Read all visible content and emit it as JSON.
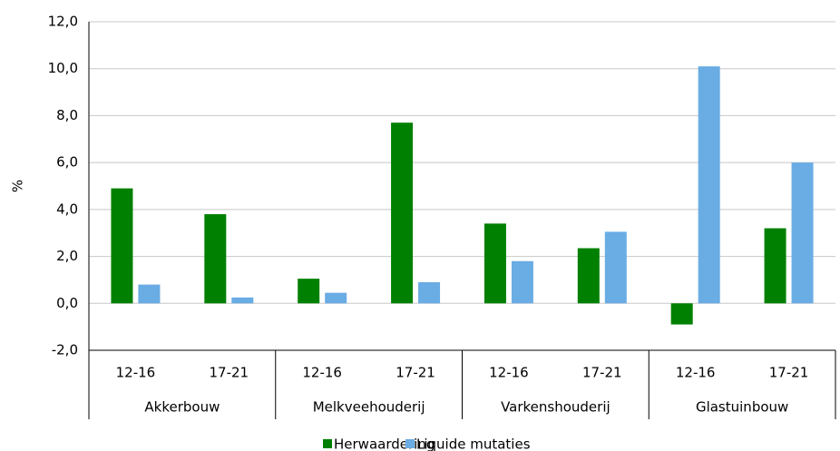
{
  "chart_data": {
    "type": "bar",
    "y_label": "%",
    "categories": [
      "12-16",
      "17-21",
      "12-16",
      "17-21",
      "12-16",
      "17-21",
      "12-16",
      "17-21"
    ],
    "groups": [
      "Akkerbouw",
      "Melkveehouderij",
      "Varkenshouderij",
      "Glastuinbouw"
    ],
    "series": [
      {
        "name": "Herwaardering",
        "color": "#008000",
        "values": [
          4.9,
          3.8,
          1.05,
          7.7,
          3.4,
          2.35,
          -0.9,
          3.2
        ]
      },
      {
        "name": "Liquide mutaties",
        "color": "#6aace4",
        "values": [
          0.8,
          0.25,
          0.45,
          0.9,
          1.8,
          3.05,
          10.1,
          6.0
        ]
      }
    ],
    "ylim": [
      -2,
      12
    ],
    "yticks": [
      {
        "value": -2,
        "label": "-2,0"
      },
      {
        "value": 0,
        "label": "0,0"
      },
      {
        "value": 2,
        "label": "2,0"
      },
      {
        "value": 4,
        "label": "4,0"
      },
      {
        "value": 6,
        "label": "6,0"
      },
      {
        "value": 8,
        "label": "8,0"
      },
      {
        "value": 10,
        "label": "10,0"
      },
      {
        "value": 12,
        "label": "12,0"
      }
    ],
    "grid": true
  }
}
